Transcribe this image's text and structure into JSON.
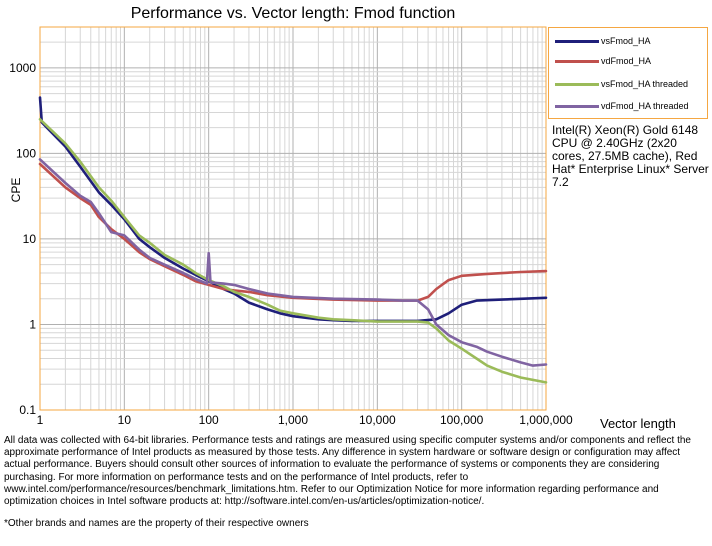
{
  "chart_data": {
    "type": "line",
    "title": "Performance vs. Vector length: Fmod function",
    "xlabel": "Vector length",
    "ylabel": "CPE",
    "xscale": "log",
    "yscale": "log",
    "xlim": [
      1,
      1000000
    ],
    "ylim": [
      0.1,
      3000
    ],
    "x_ticks": [
      1,
      10,
      100,
      1000,
      10000,
      100000,
      1000000
    ],
    "x_tick_labels": [
      "1",
      "10",
      "100",
      "1,000",
      "10,000",
      "100,000",
      "1,000,000"
    ],
    "y_ticks": [
      0.1,
      1,
      10,
      100,
      1000
    ],
    "y_tick_labels": [
      "0.1",
      "1",
      "10",
      "100",
      "1000"
    ],
    "grid": true,
    "legend_position": "right",
    "series": [
      {
        "name": "vsFmod_HA",
        "color": "#1f1f7a",
        "points": [
          [
            1,
            450
          ],
          [
            1.05,
            230
          ],
          [
            2,
            120
          ],
          [
            3,
            70
          ],
          [
            5,
            35
          ],
          [
            7,
            25
          ],
          [
            10,
            17
          ],
          [
            15,
            10
          ],
          [
            20,
            8
          ],
          [
            30,
            6
          ],
          [
            50,
            4.5
          ],
          [
            70,
            3.8
          ],
          [
            100,
            3.2
          ],
          [
            150,
            2.6
          ],
          [
            200,
            2.3
          ],
          [
            300,
            1.8
          ],
          [
            500,
            1.5
          ],
          [
            700,
            1.35
          ],
          [
            1000,
            1.25
          ],
          [
            2000,
            1.15
          ],
          [
            3000,
            1.12
          ],
          [
            5000,
            1.1
          ],
          [
            10000,
            1.1
          ],
          [
            20000,
            1.1
          ],
          [
            30000,
            1.1
          ],
          [
            50000,
            1.15
          ],
          [
            70000,
            1.35
          ],
          [
            100000,
            1.7
          ],
          [
            150000,
            1.9
          ],
          [
            300000,
            1.95
          ],
          [
            1000000,
            2.05
          ]
        ]
      },
      {
        "name": "vdFmod_HA",
        "color": "#c0504d",
        "points": [
          [
            1,
            75
          ],
          [
            2,
            40
          ],
          [
            3,
            30
          ],
          [
            4,
            25
          ],
          [
            5,
            18
          ],
          [
            7,
            13
          ],
          [
            10,
            10
          ],
          [
            15,
            7
          ],
          [
            20,
            5.8
          ],
          [
            30,
            4.8
          ],
          [
            50,
            3.8
          ],
          [
            70,
            3.2
          ],
          [
            100,
            2.9
          ],
          [
            150,
            2.6
          ],
          [
            200,
            2.5
          ],
          [
            300,
            2.4
          ],
          [
            500,
            2.2
          ],
          [
            1000,
            2.05
          ],
          [
            3000,
            1.95
          ],
          [
            10000,
            1.9
          ],
          [
            30000,
            1.9
          ],
          [
            40000,
            2.1
          ],
          [
            50000,
            2.6
          ],
          [
            70000,
            3.3
          ],
          [
            100000,
            3.7
          ],
          [
            200000,
            3.9
          ],
          [
            500000,
            4.1
          ],
          [
            1000000,
            4.2
          ]
        ]
      },
      {
        "name": "vsFmod_HA threaded",
        "color": "#9bbb59",
        "points": [
          [
            1,
            250
          ],
          [
            2,
            130
          ],
          [
            3,
            80
          ],
          [
            5,
            40
          ],
          [
            7,
            28
          ],
          [
            10,
            18
          ],
          [
            15,
            11
          ],
          [
            20,
            9
          ],
          [
            30,
            6.5
          ],
          [
            50,
            5
          ],
          [
            70,
            4
          ],
          [
            100,
            3.3
          ],
          [
            150,
            2.8
          ],
          [
            200,
            2.4
          ],
          [
            300,
            2.1
          ],
          [
            500,
            1.7
          ],
          [
            700,
            1.45
          ],
          [
            1000,
            1.35
          ],
          [
            2000,
            1.2
          ],
          [
            3000,
            1.15
          ],
          [
            5000,
            1.12
          ],
          [
            10000,
            1.08
          ],
          [
            20000,
            1.08
          ],
          [
            30000,
            1.08
          ],
          [
            40000,
            1.05
          ],
          [
            50000,
            0.9
          ],
          [
            70000,
            0.65
          ],
          [
            100000,
            0.52
          ],
          [
            150000,
            0.4
          ],
          [
            200000,
            0.33
          ],
          [
            300000,
            0.28
          ],
          [
            500000,
            0.24
          ],
          [
            1000000,
            0.21
          ]
        ]
      },
      {
        "name": "vdFmod_HA threaded",
        "color": "#8064a2",
        "points": [
          [
            1,
            85
          ],
          [
            2,
            45
          ],
          [
            3,
            32
          ],
          [
            4,
            27
          ],
          [
            5,
            20
          ],
          [
            7,
            12
          ],
          [
            10,
            11
          ],
          [
            15,
            7.5
          ],
          [
            20,
            6
          ],
          [
            30,
            5
          ],
          [
            50,
            4
          ],
          [
            70,
            3.4
          ],
          [
            95,
            3
          ],
          [
            100,
            6.8
          ],
          [
            105,
            3.1
          ],
          [
            150,
            3
          ],
          [
            200,
            2.9
          ],
          [
            300,
            2.6
          ],
          [
            500,
            2.3
          ],
          [
            1000,
            2.1
          ],
          [
            3000,
            2
          ],
          [
            10000,
            1.95
          ],
          [
            20000,
            1.9
          ],
          [
            30000,
            1.9
          ],
          [
            40000,
            1.5
          ],
          [
            50000,
            1
          ],
          [
            70000,
            0.75
          ],
          [
            100000,
            0.62
          ],
          [
            150000,
            0.55
          ],
          [
            200000,
            0.48
          ],
          [
            300000,
            0.42
          ],
          [
            500000,
            0.36
          ],
          [
            700000,
            0.33
          ],
          [
            1000000,
            0.34
          ]
        ]
      }
    ]
  },
  "info_text": "Intel(R) Xeon(R) Gold 6148 CPU @ 2.40GHz (2x20 cores, 27.5MB cache), Red Hat* Enterprise Linux* Server 7.2",
  "footnote": "All data was collected with 64-bit libraries. Performance tests and ratings are measured using specific computer systems and/or components and reflect the approximate performance of Intel products as measured by those tests. Any difference in system hardware or software design or configuration may affect actual performance. Buyers should consult other sources of information to evaluate the performance of systems or components they are considering purchasing. For more information on performance tests and on the performance of Intel products, refer to www.intel.com/performance/resources/benchmark_limitations.htm. Refer to our Optimization Notice for more information regarding performance and optimization choices in Intel software products at: http://software.intel.com/en-us/articles/optimization-notice/.",
  "footnote2": "*Other brands and names are the property of their respective owners"
}
